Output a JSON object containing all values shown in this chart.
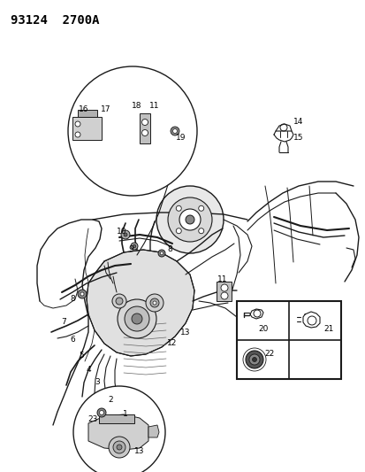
{
  "title": "93124  2700A",
  "bg_color": "#ffffff",
  "fig_width": 4.14,
  "fig_height": 5.33,
  "dpi": 100,
  "dark": "#1a1a1a",
  "gray": "#888888",
  "lightgray": "#cccccc"
}
